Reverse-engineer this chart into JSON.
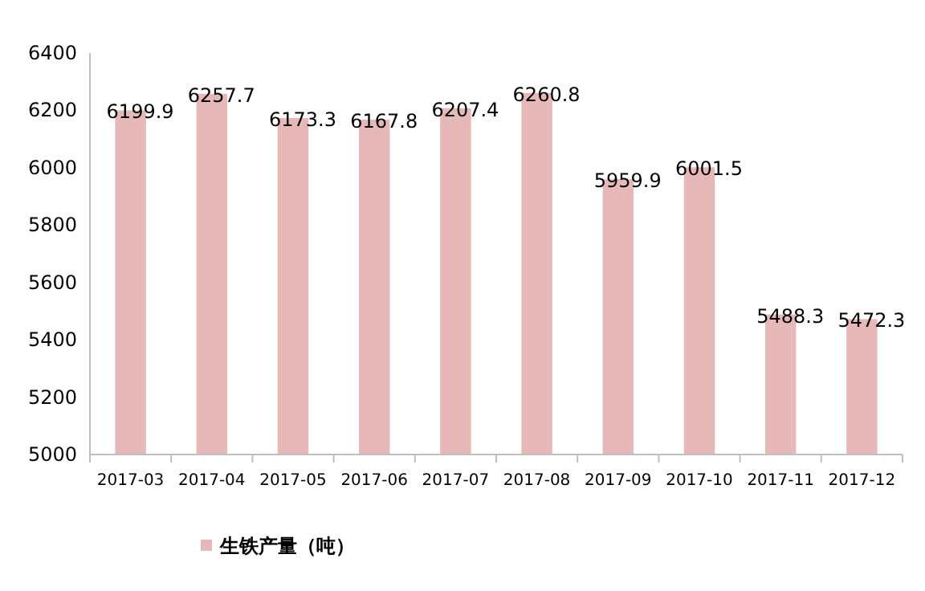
{
  "chart_data": {
    "type": "bar",
    "categories": [
      "2017-03",
      "2017-04",
      "2017-05",
      "2017-06",
      "2017-07",
      "2017-08",
      "2017-09",
      "2017-10",
      "2017-11",
      "2017-12"
    ],
    "series": [
      {
        "name": "生铁产量（吨）",
        "color": "#e6b9b8",
        "values": [
          6199.9,
          6257.7,
          6173.3,
          6167.8,
          6207.4,
          6260.8,
          5959.9,
          6001.5,
          5488.3,
          5472.3
        ]
      }
    ],
    "ylim": [
      5000,
      6400
    ],
    "yticks": [
      5000,
      5200,
      5400,
      5600,
      5800,
      6000,
      6200,
      6400
    ],
    "data_labels": true,
    "legend": "bottom"
  }
}
